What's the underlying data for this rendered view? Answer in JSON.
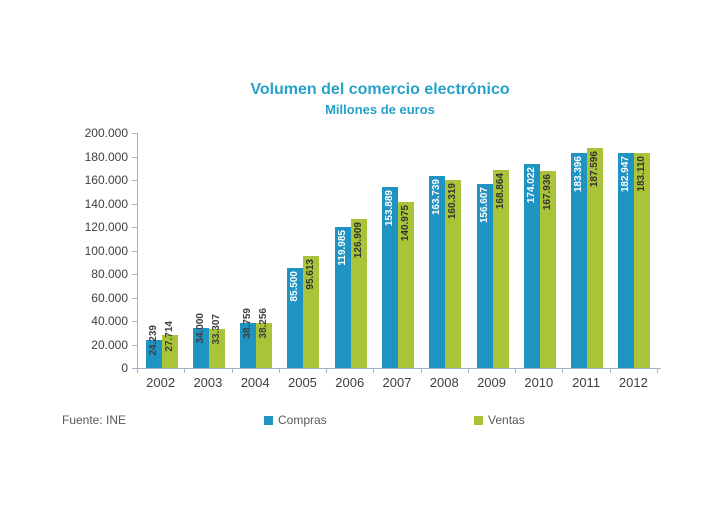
{
  "title": "Volumen del comercio electrónico",
  "subtitle": "Millones de euros",
  "source": "Fuente: INE",
  "colors": {
    "title": "#26A2C9",
    "compras": "#1F93C1",
    "ventas": "#A9C439",
    "axis": "#A3B4C4",
    "axis_text": "#404040",
    "legend_text": "#595959",
    "label_on_blue": "#FFFFFF",
    "label_on_green": "#333333",
    "label_outside": "#3F3F3F"
  },
  "chart_data": {
    "type": "bar",
    "title": "Volumen del comercio electrónico",
    "subtitle": "Millones de euros",
    "xlabel": "",
    "ylabel": "",
    "categories": [
      "2002",
      "2003",
      "2004",
      "2005",
      "2006",
      "2007",
      "2008",
      "2009",
      "2010",
      "2011",
      "2012"
    ],
    "series": [
      {
        "name": "Compras",
        "color": "#1F93C1",
        "values": [
          24239,
          34000,
          38759,
          85500,
          119985,
          153889,
          163739,
          156607,
          174022,
          183396,
          182947
        ],
        "labels": [
          "24.239",
          "34.000",
          "38.759",
          "85.500",
          "119.985",
          "153.889",
          "163.739",
          "156.607",
          "174.022",
          "183.396",
          "182.947"
        ]
      },
      {
        "name": "Ventas",
        "color": "#A9C439",
        "values": [
          27714,
          33307,
          38256,
          95613,
          126909,
          140975,
          160319,
          168864,
          167936,
          187596,
          183110
        ],
        "labels": [
          "27.714",
          "33.307",
          "38.256",
          "95.613",
          "126.909",
          "140.975",
          "160.319",
          "168.864",
          "167.936",
          "187.596",
          "183.110"
        ]
      }
    ],
    "ylim": [
      0,
      200000
    ],
    "ytick_step": 20000,
    "yticks": [
      "200.000",
      "180.000",
      "160.000",
      "140.000",
      "120.000",
      "100.000",
      "80.000",
      "60.000",
      "40.000",
      "20.000",
      "0"
    ],
    "grid": false,
    "legend_position": "bottom",
    "source": "Fuente: INE"
  }
}
